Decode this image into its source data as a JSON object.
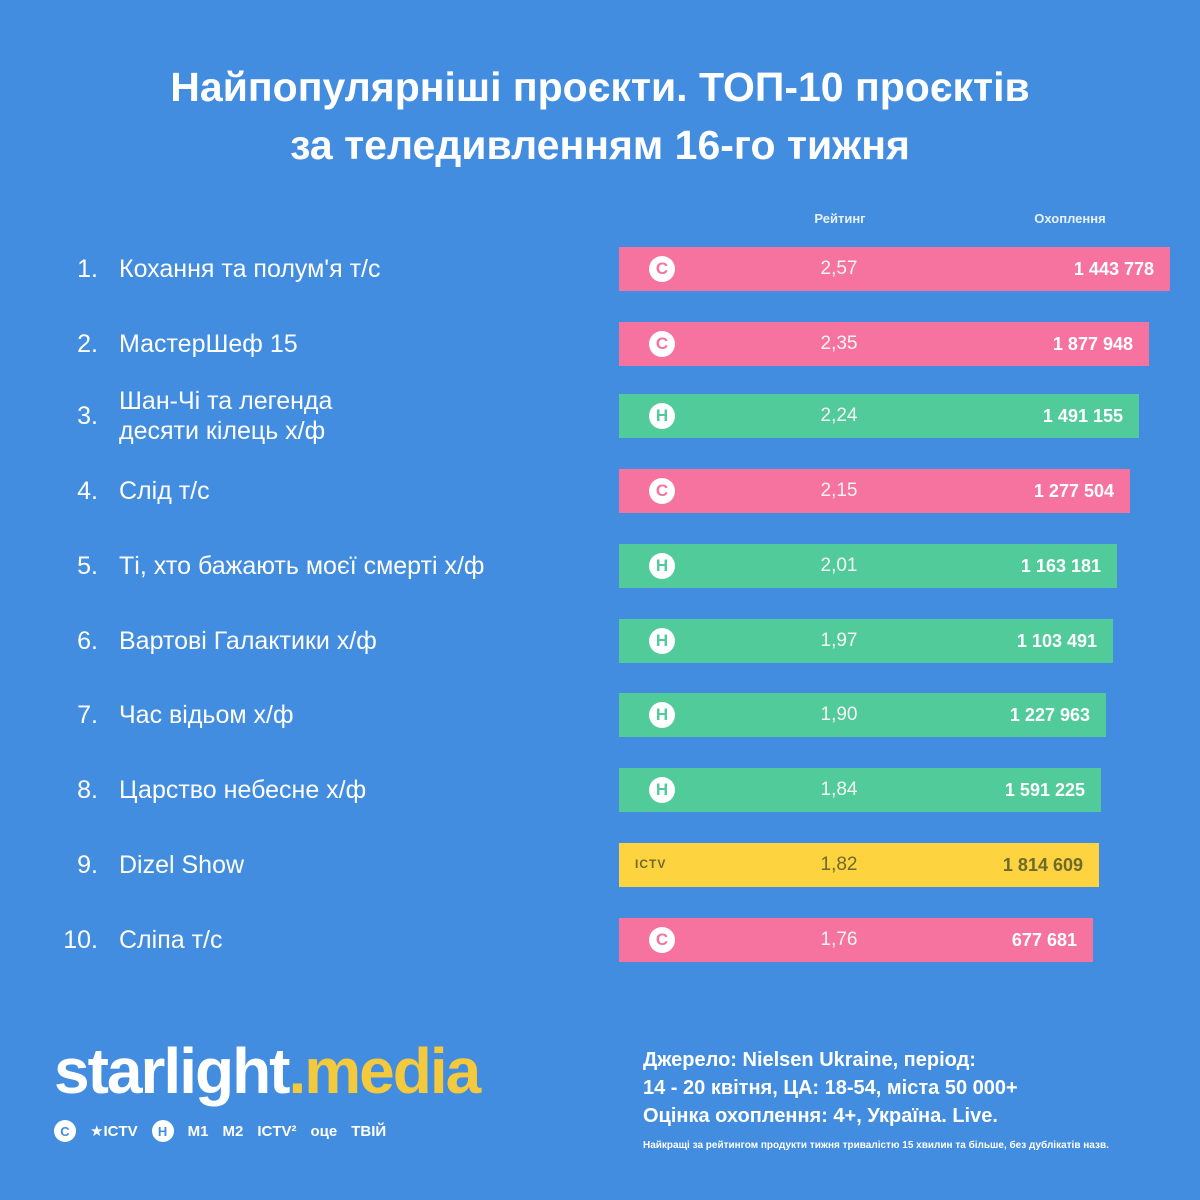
{
  "title_line1": "Найпопулярніші проєкти. ТОП-10 проєктів",
  "title_line2": "за теледивленням 16-го тижня",
  "columns": {
    "rating": "Рейтинг",
    "reach": "Охоплення"
  },
  "colors": {
    "background": "#428ddf",
    "stb": "#f7739f",
    "novy": "#52cb9b",
    "ictv2": "#fdd33f"
  },
  "chart_data": {
    "type": "bar",
    "title": "Найпопулярніші проєкти. ТОП-10 проєктів за теледивленням 16-го тижня",
    "categories": [
      "Кохання та полум'я т/с",
      "МастерШеф 15",
      "Шан-Чі та легенда десяти кілець х/ф",
      "Слід т/с",
      "Ті, хто бажають моєї смерті х/ф",
      "Вартові Галактики х/ф",
      "Час відьом х/ф",
      "Царство небесне х/ф",
      "Dizel Show",
      "Сліпа т/с"
    ],
    "series": [
      {
        "name": "Рейтинг",
        "values": [
          2.57,
          2.35,
          2.24,
          2.15,
          2.01,
          1.97,
          1.9,
          1.84,
          1.82,
          1.76
        ]
      },
      {
        "name": "Охоплення",
        "values": [
          1443778,
          1877948,
          1491155,
          1277504,
          1163181,
          1103491,
          1227963,
          1591225,
          1814609,
          677681
        ]
      }
    ],
    "channel": [
      "stb",
      "stb",
      "novy",
      "stb",
      "novy",
      "novy",
      "novy",
      "novy",
      "ictv2",
      "stb"
    ],
    "xlabel": "",
    "ylabel": ""
  },
  "rows": [
    {
      "rank": "1.",
      "name": "Кохання та полум'я т/с",
      "rating": "2,57",
      "reach": "1 443 778",
      "logo": "С"
    },
    {
      "rank": "2.",
      "name": "МастерШеф 15",
      "rating": "2,35",
      "reach": "1 877 948",
      "logo": "С"
    },
    {
      "rank": "3.",
      "name": "Шан-Чі та легенда\nдесяти кілець х/ф",
      "rating": "2,24",
      "reach": "1 491 155",
      "logo": "Н"
    },
    {
      "rank": "4.",
      "name": "Слід т/с",
      "rating": "2,15",
      "reach": "1 277 504",
      "logo": "С"
    },
    {
      "rank": "5.",
      "name": "Ті, хто бажають моєї смерті х/ф",
      "rating": "2,01",
      "reach": "1 163 181",
      "logo": "Н"
    },
    {
      "rank": "6.",
      "name": "Вартові Галактики х/ф",
      "rating": "1,97",
      "reach": "1 103 491",
      "logo": "Н"
    },
    {
      "rank": "7.",
      "name": "Час відьом х/ф",
      "rating": "1,90",
      "reach": "1 227 963",
      "logo": "Н"
    },
    {
      "rank": "8.",
      "name": "Царство небесне х/ф",
      "rating": "1,84",
      "reach": "1 591 225",
      "logo": "Н"
    },
    {
      "rank": "9.",
      "name": "Dizel Show",
      "rating": "1,82",
      "reach": "1 814 609",
      "logo": "ICTV"
    },
    {
      "rank": "10.",
      "name": "Сліпа т/с",
      "rating": "1,76",
      "reach": "677 681",
      "logo": "С"
    }
  ],
  "brand": {
    "part1": "starlight",
    "dot": ".",
    "part2": "media"
  },
  "channels": [
    {
      "label": "С",
      "icon": "stb-logo-icon"
    },
    {
      "label": "★ICTV",
      "icon": "ictv-logo-icon"
    },
    {
      "label": "Н",
      "icon": "novy-logo-icon"
    },
    {
      "label": "M1",
      "icon": "m1-logo-icon"
    },
    {
      "label": "M2",
      "icon": "m2-logo-icon"
    },
    {
      "label": "ICTV²",
      "icon": "ictv2-logo-icon"
    },
    {
      "label": "оце",
      "icon": "oce-logo-icon"
    },
    {
      "label": "ТВІЙ",
      "icon": "tviy-logo-icon"
    }
  ],
  "source": {
    "line1": "Джерело: Nielsen Ukraine, період:",
    "line2": "14 - 20 квітня, ЦА: 18-54, міста 50 000+",
    "line3": "Оцінка охоплення: 4+, Україна. Live."
  },
  "footnote": "Найкращі за рейтингом продукти тижня тривалістю 15 хвилин та більше, без дублікатів назв."
}
